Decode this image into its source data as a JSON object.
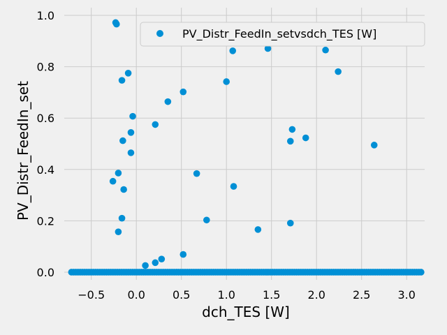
{
  "chart_data": {
    "type": "scatter",
    "xlabel": "dch_TES [W]",
    "ylabel": "PV_Distr_FeedIn_set",
    "xlim": [
      -0.8,
      3.2
    ],
    "ylim": [
      -0.03,
      1.03
    ],
    "xticks": [
      -0.5,
      0.0,
      0.5,
      1.0,
      1.5,
      2.0,
      2.5,
      3.0
    ],
    "xtick_labels": [
      "−0.5",
      "0.0",
      "0.5",
      "1.0",
      "1.5",
      "2.0",
      "2.5",
      "3.0"
    ],
    "yticks": [
      0.0,
      0.2,
      0.4,
      0.6,
      0.8,
      1.0
    ],
    "ytick_labels": [
      "0.0",
      "0.2",
      "0.4",
      "0.6",
      "0.8",
      "1.0"
    ],
    "grid": true,
    "legend_position": "top-right",
    "marker_color": "#008fd5",
    "background_color": "#f0f0f0",
    "grid_color": "#cbcbcb",
    "series": [
      {
        "name": "PV_Distr_FeedIn_setvsdch_TES [W]",
        "zero_band_x": [
          -0.72,
          3.16
        ],
        "points": [
          {
            "x": -0.23,
            "y": 0.972
          },
          {
            "x": -0.22,
            "y": 0.966
          },
          {
            "x": -0.09,
            "y": 0.775
          },
          {
            "x": -0.16,
            "y": 0.747
          },
          {
            "x": -0.04,
            "y": 0.607
          },
          {
            "x": -0.06,
            "y": 0.544
          },
          {
            "x": -0.15,
            "y": 0.512
          },
          {
            "x": -0.06,
            "y": 0.465
          },
          {
            "x": -0.2,
            "y": 0.386
          },
          {
            "x": -0.26,
            "y": 0.354
          },
          {
            "x": -0.14,
            "y": 0.322
          },
          {
            "x": -0.16,
            "y": 0.21
          },
          {
            "x": -0.2,
            "y": 0.157
          },
          {
            "x": 0.1,
            "y": 0.026
          },
          {
            "x": 0.21,
            "y": 0.037
          },
          {
            "x": 0.28,
            "y": 0.051
          },
          {
            "x": 0.21,
            "y": 0.575
          },
          {
            "x": 0.35,
            "y": 0.664
          },
          {
            "x": 0.52,
            "y": 0.702
          },
          {
            "x": 0.52,
            "y": 0.069
          },
          {
            "x": 0.67,
            "y": 0.384
          },
          {
            "x": 0.78,
            "y": 0.203
          },
          {
            "x": 1.0,
            "y": 0.742
          },
          {
            "x": 1.07,
            "y": 0.862
          },
          {
            "x": 1.08,
            "y": 0.334
          },
          {
            "x": 1.35,
            "y": 0.166
          },
          {
            "x": 1.46,
            "y": 0.871
          },
          {
            "x": 1.71,
            "y": 0.191
          },
          {
            "x": 1.71,
            "y": 0.51
          },
          {
            "x": 1.73,
            "y": 0.556
          },
          {
            "x": 1.88,
            "y": 0.523
          },
          {
            "x": 2.1,
            "y": 0.865
          },
          {
            "x": 2.24,
            "y": 0.781
          },
          {
            "x": 2.64,
            "y": 0.495
          }
        ]
      }
    ]
  }
}
